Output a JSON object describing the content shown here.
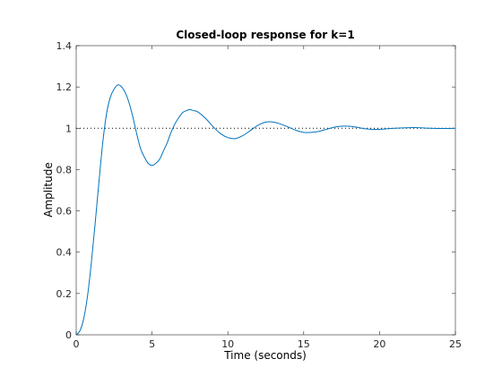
{
  "chart_data": {
    "type": "line",
    "title": "Closed-loop response for k=1",
    "xlabel": "Time (seconds)",
    "ylabel": "Amplitude",
    "xlim": [
      0,
      25
    ],
    "ylim": [
      0,
      1.4
    ],
    "grid": false,
    "x_ticks": [
      "0",
      "5",
      "10",
      "15",
      "20",
      "25"
    ],
    "y_ticks": [
      "0",
      "0.2",
      "0.4",
      "0.6",
      "0.8",
      "1",
      "1.2",
      "1.4"
    ],
    "reference_line": {
      "value": 1,
      "style": "dotted",
      "color": "#000000"
    },
    "series": [
      {
        "color": "#0072BD",
        "x": [
          0,
          0.25,
          0.5,
          0.75,
          1.0,
          1.25,
          1.5,
          1.75,
          2.0,
          2.25,
          2.5,
          2.75,
          3.0,
          3.25,
          3.5,
          3.75,
          4.0,
          4.25,
          4.5,
          4.75,
          5.0,
          5.25,
          5.5,
          5.75,
          6.0,
          6.25,
          6.5,
          6.75,
          7.0,
          7.25,
          7.5,
          7.75,
          8.0,
          8.5,
          9.0,
          9.5,
          10.0,
          10.5,
          11.0,
          11.5,
          12.0,
          12.5,
          13.0,
          13.5,
          14.0,
          14.5,
          15.0,
          15.5,
          16.0,
          16.5,
          17.0,
          17.5,
          18.0,
          18.5,
          19.0,
          19.5,
          20.0,
          21.0,
          22.0,
          22.5,
          23.0,
          24.0,
          25.0
        ],
        "y": [
          0,
          0.02,
          0.08,
          0.19,
          0.35,
          0.54,
          0.74,
          0.93,
          1.07,
          1.15,
          1.19,
          1.21,
          1.2,
          1.17,
          1.12,
          1.05,
          0.97,
          0.9,
          0.86,
          0.83,
          0.82,
          0.83,
          0.85,
          0.89,
          0.93,
          0.98,
          1.02,
          1.05,
          1.075,
          1.085,
          1.09,
          1.085,
          1.08,
          1.05,
          1.01,
          0.975,
          0.955,
          0.95,
          0.965,
          0.99,
          1.015,
          1.03,
          1.03,
          1.02,
          1.005,
          0.99,
          0.98,
          0.98,
          0.985,
          0.995,
          1.005,
          1.01,
          1.01,
          1.005,
          0.998,
          0.995,
          0.995,
          1.0,
          1.003,
          1.003,
          1.001,
          0.999,
          1.0
        ]
      }
    ]
  }
}
